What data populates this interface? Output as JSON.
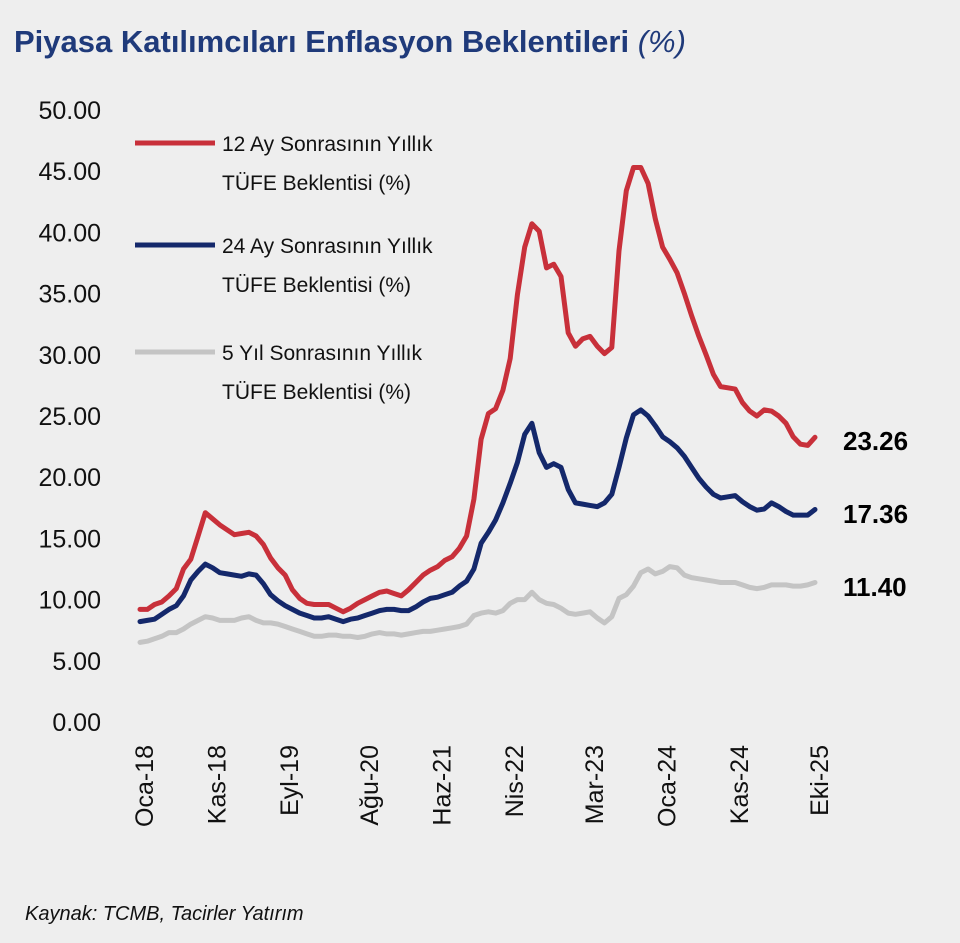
{
  "chart_data": {
    "type": "line",
    "title": "Piyasa Katılımcıları Enflasyon Beklentileri",
    "title_unit": "(%)",
    "xlabel": "",
    "ylabel": "",
    "x_unit": "month index from Oca-18 (monthly, Oca-18 ... Eki-25)",
    "xlim": [
      0,
      93
    ],
    "ylim": [
      0,
      50
    ],
    "yticks": [
      "0.00",
      "5.00",
      "10.00",
      "15.00",
      "20.00",
      "25.00",
      "30.00",
      "35.00",
      "40.00",
      "45.00",
      "50.00"
    ],
    "xticks": [
      {
        "label": "Oca-18",
        "index": 0
      },
      {
        "label": "Kas-18",
        "index": 10
      },
      {
        "label": "Eyl-19",
        "index": 20
      },
      {
        "label": "Ağu-20",
        "index": 31
      },
      {
        "label": "Haz-21",
        "index": 41
      },
      {
        "label": "Nis-22",
        "index": 51
      },
      {
        "label": "Mar-23",
        "index": 62
      },
      {
        "label": "Oca-24",
        "index": 72
      },
      {
        "label": "Kas-24",
        "index": 82
      },
      {
        "label": "Eki-25",
        "index": 93
      }
    ],
    "grid": false,
    "legend_position": "top-left",
    "series": [
      {
        "name_line1": "12 Ay Sonrasının Yıllık",
        "name_line2": "TÜFE Beklentisi (%)",
        "color": "#c8303a",
        "last_label": "23.26",
        "values": [
          9.2,
          9.2,
          9.6,
          9.8,
          10.3,
          10.9,
          12.5,
          13.3,
          15.2,
          17.1,
          16.6,
          16.1,
          15.7,
          15.3,
          15.4,
          15.5,
          15.2,
          14.5,
          13.4,
          12.6,
          12.0,
          10.8,
          10.1,
          9.7,
          9.6,
          9.6,
          9.6,
          9.3,
          9.0,
          9.3,
          9.7,
          10.0,
          10.3,
          10.6,
          10.7,
          10.5,
          10.3,
          10.8,
          11.4,
          12.0,
          12.4,
          12.7,
          13.2,
          13.5,
          14.2,
          15.2,
          18.2,
          23.1,
          25.2,
          25.6,
          27.1,
          29.7,
          34.9,
          38.8,
          40.7,
          40.1,
          37.1,
          37.4,
          36.4,
          31.8,
          30.7,
          31.3,
          31.5,
          30.7,
          30.1,
          30.6,
          38.5,
          43.4,
          45.3,
          45.3,
          44.0,
          41.1,
          38.8,
          37.8,
          36.7,
          35.0,
          33.2,
          31.5,
          30.0,
          28.4,
          27.4,
          27.3,
          27.2,
          26.1,
          25.4,
          25.0,
          25.5,
          25.4,
          25.0,
          24.4,
          23.3,
          22.7,
          22.6,
          23.26
        ]
      },
      {
        "name_line1": "24 Ay Sonrasının Yıllık",
        "name_line2": "TÜFE Beklentisi (%)",
        "color": "#14286b",
        "last_label": "17.36",
        "values": [
          8.2,
          8.3,
          8.4,
          8.8,
          9.2,
          9.5,
          10.3,
          11.6,
          12.3,
          12.9,
          12.6,
          12.2,
          12.1,
          12.0,
          11.9,
          12.1,
          12.0,
          11.3,
          10.4,
          9.9,
          9.5,
          9.2,
          8.9,
          8.7,
          8.5,
          8.5,
          8.6,
          8.4,
          8.2,
          8.4,
          8.5,
          8.7,
          8.9,
          9.1,
          9.2,
          9.2,
          9.1,
          9.1,
          9.4,
          9.8,
          10.1,
          10.2,
          10.4,
          10.6,
          11.1,
          11.5,
          12.5,
          14.6,
          15.5,
          16.5,
          17.9,
          19.5,
          21.2,
          23.5,
          24.4,
          22.0,
          20.8,
          21.1,
          20.8,
          19.0,
          17.9,
          17.8,
          17.7,
          17.6,
          17.9,
          18.6,
          20.8,
          23.2,
          25.1,
          25.5,
          25.0,
          24.2,
          23.3,
          22.9,
          22.4,
          21.7,
          20.8,
          19.9,
          19.2,
          18.6,
          18.3,
          18.4,
          18.5,
          18.0,
          17.6,
          17.3,
          17.4,
          17.9,
          17.6,
          17.2,
          16.9,
          16.9,
          16.9,
          17.36
        ]
      },
      {
        "name_line1": "5 Yıl Sonrasının Yıllık",
        "name_line2": "TÜFE Beklentisi (%)",
        "color": "#c4c4c4",
        "last_label": "11.40",
        "values": [
          6.5,
          6.6,
          6.8,
          7.0,
          7.3,
          7.3,
          7.6,
          8.0,
          8.3,
          8.6,
          8.5,
          8.3,
          8.3,
          8.3,
          8.5,
          8.6,
          8.3,
          8.1,
          8.1,
          8.0,
          7.8,
          7.6,
          7.4,
          7.2,
          7.0,
          7.0,
          7.1,
          7.1,
          7.0,
          7.0,
          6.9,
          7.0,
          7.2,
          7.3,
          7.2,
          7.2,
          7.1,
          7.2,
          7.3,
          7.4,
          7.4,
          7.5,
          7.6,
          7.7,
          7.8,
          8.0,
          8.7,
          8.9,
          9.0,
          8.9,
          9.1,
          9.7,
          10.0,
          10.0,
          10.6,
          10.0,
          9.7,
          9.6,
          9.3,
          8.9,
          8.8,
          8.9,
          9.0,
          8.5,
          8.1,
          8.6,
          10.1,
          10.4,
          11.1,
          12.2,
          12.5,
          12.1,
          12.3,
          12.7,
          12.6,
          12.0,
          11.8,
          11.7,
          11.6,
          11.5,
          11.4,
          11.4,
          11.4,
          11.2,
          11.0,
          10.9,
          11.0,
          11.2,
          11.2,
          11.2,
          11.1,
          11.1,
          11.2,
          11.4
        ]
      }
    ],
    "source": "Kaynak: TCMB, Tacirler Yatırım"
  }
}
